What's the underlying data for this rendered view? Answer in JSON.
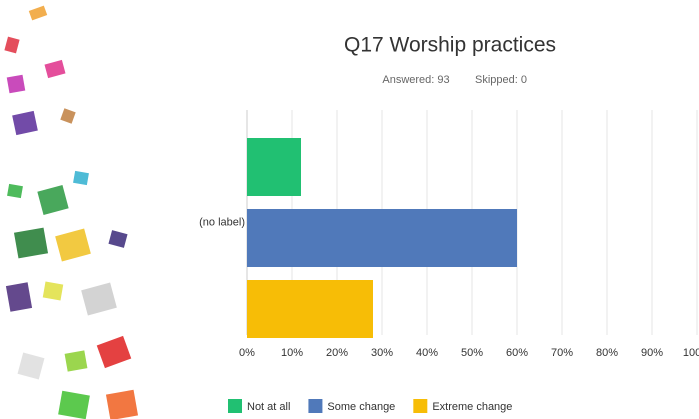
{
  "chart_data": {
    "type": "hbar",
    "title": "Q17 Worship practices",
    "answered": "Answered: 93",
    "skipped": "Skipped: 0",
    "categories": [
      "(no label)"
    ],
    "series": [
      {
        "name": "Not at all",
        "color": "#21c072",
        "values": [
          12
        ]
      },
      {
        "name": "Some change",
        "color": "#5079ba",
        "values": [
          60
        ]
      },
      {
        "name": "Extreme change",
        "color": "#f7bd06",
        "values": [
          28
        ]
      }
    ],
    "xlim": [
      0,
      100
    ],
    "xticks": [
      {
        "value": 0,
        "label": "0%"
      },
      {
        "value": 10,
        "label": "10%"
      },
      {
        "value": 20,
        "label": "20%"
      },
      {
        "value": 30,
        "label": "30%"
      },
      {
        "value": 40,
        "label": "40%"
      },
      {
        "value": 50,
        "label": "50%"
      },
      {
        "value": 60,
        "label": "60%"
      },
      {
        "value": 70,
        "label": "70%"
      },
      {
        "value": 80,
        "label": "80%"
      },
      {
        "value": 90,
        "label": "90%"
      },
      {
        "value": 100,
        "label": "100%"
      }
    ],
    "grid": true,
    "legend": "bottom"
  }
}
